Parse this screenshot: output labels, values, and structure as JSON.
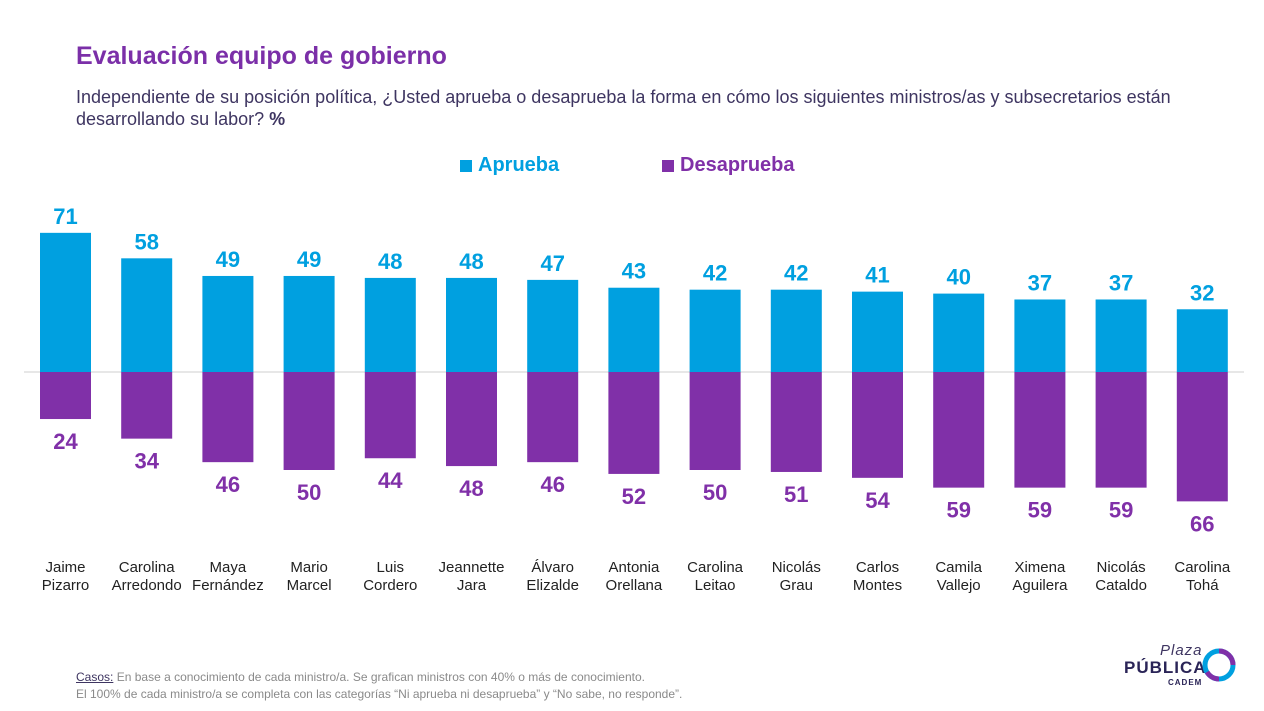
{
  "header": {
    "title": "Evaluación equipo de gobierno",
    "subtitle": "Independiente de su posición política, ¿Usted aprueba o desaprueba la forma en cómo los siguientes ministros/as y subsecretarios están desarrollando su labor?",
    "subtitle_unit": "%"
  },
  "colors": {
    "approve": "#00a0e0",
    "disapprove": "#8030a8",
    "title": "#7b2fa8"
  },
  "chart_data": {
    "type": "bar",
    "title": "Evaluación equipo de gobierno",
    "categories": [
      "Jaime\nPizarro",
      "Carolina\nArredondo",
      "Maya\nFernández",
      "Mario\nMarcel",
      "Luis\nCordero",
      "Jeannette\nJara",
      "Álvaro\nElizalde",
      "Antonia\nOrellana",
      "Carolina\nLeitao",
      "Nicolás\nGrau",
      "Carlos\nMontes",
      "Camila\nVallejo",
      "Ximena\nAguilera",
      "Nicolás\nCataldo",
      "Carolina\nTohá"
    ],
    "series": [
      {
        "name": "Aprueba",
        "direction": "up",
        "color": "#00a0e0",
        "values": [
          71,
          58,
          49,
          49,
          48,
          48,
          47,
          43,
          42,
          42,
          41,
          40,
          37,
          37,
          32
        ]
      },
      {
        "name": "Desaprueba",
        "direction": "down",
        "color": "#8030a8",
        "values": [
          24,
          34,
          46,
          50,
          44,
          48,
          46,
          52,
          50,
          51,
          54,
          59,
          59,
          59,
          66
        ]
      }
    ],
    "legend_position": "top-center",
    "grid": false
  },
  "footnote": {
    "label": "Casos:",
    "line1": "En base a conocimiento de cada ministro/a. Se grafican ministros con 40% o más de conocimiento.",
    "line2": "El 100% de cada ministro/a se completa con las categorías “Ni aprueba ni desaprueba” y “No sabe, no responde”."
  },
  "logo": {
    "top": "Plaza",
    "main": "PÚBLICA",
    "sub": "CADEM"
  }
}
